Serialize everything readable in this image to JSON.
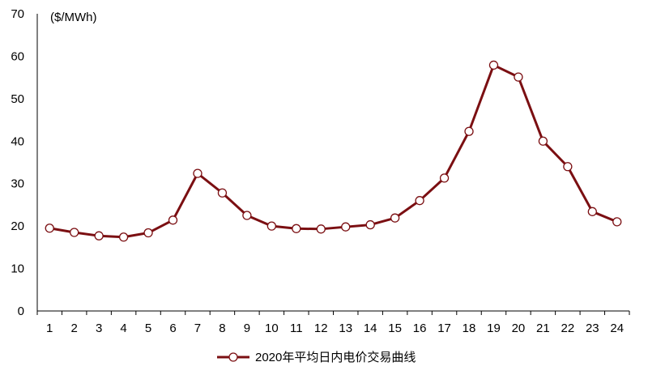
{
  "chart_data": {
    "type": "line",
    "unit_label": "($/MWh)",
    "x": [
      1,
      2,
      3,
      4,
      5,
      6,
      7,
      8,
      9,
      10,
      11,
      12,
      13,
      14,
      15,
      16,
      17,
      18,
      19,
      20,
      21,
      22,
      23,
      24
    ],
    "series": [
      {
        "name": "2020年平均日内电价交易曲线",
        "values": [
          19.5,
          18.5,
          17.7,
          17.4,
          18.4,
          21.4,
          32.4,
          27.8,
          22.5,
          20.0,
          19.4,
          19.3,
          19.8,
          20.3,
          21.9,
          26.0,
          31.3,
          42.3,
          57.9,
          55.1,
          40.0,
          34.0,
          23.4,
          21.0
        ],
        "color": "#7b0f12"
      }
    ],
    "ylim": [
      0,
      70
    ],
    "yticks": [
      0,
      10,
      20,
      30,
      40,
      50,
      60,
      70
    ],
    "grid": false,
    "legend_position": "bottom-center"
  }
}
